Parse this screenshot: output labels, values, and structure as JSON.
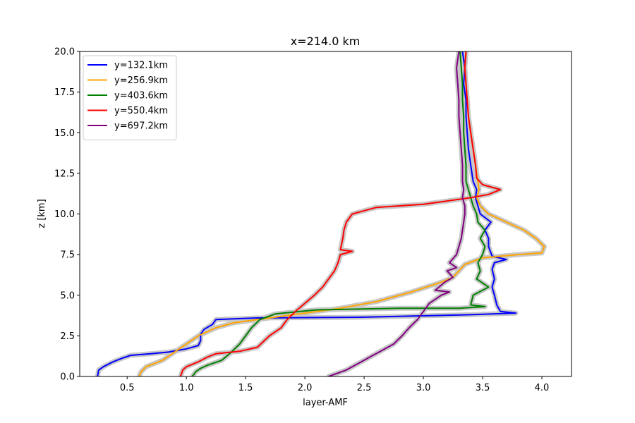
{
  "chart_data": {
    "type": "line",
    "title": "x=214.0 km",
    "xlabel": "layer-AMF",
    "ylabel": "z [km]",
    "xlim": [
      0.1,
      4.25
    ],
    "ylim": [
      0,
      20
    ],
    "xticks": [
      0.5,
      1.0,
      1.5,
      2.0,
      2.5,
      3.0,
      3.5,
      4.0
    ],
    "xtick_labels": [
      "0.5",
      "1.0",
      "1.5",
      "2.0",
      "2.5",
      "3.0",
      "3.5",
      "4.0"
    ],
    "yticks": [
      0,
      2.5,
      5,
      7.5,
      10,
      12.5,
      15,
      17.5,
      20
    ],
    "ytick_labels": [
      "0.0",
      "2.5",
      "5.0",
      "7.5",
      "10.0",
      "12.5",
      "15.0",
      "17.5",
      "20.0"
    ],
    "grid": false,
    "legend_position": "top-left",
    "uncertainty_band_color": "#c8c8c8",
    "series": [
      {
        "name": "y=132.1km",
        "color": "#0000ff",
        "points": [
          [
            0.25,
            0
          ],
          [
            0.26,
            0.4
          ],
          [
            0.3,
            0.6
          ],
          [
            0.38,
            0.9
          ],
          [
            0.45,
            1.1
          ],
          [
            0.53,
            1.3
          ],
          [
            0.7,
            1.4
          ],
          [
            0.85,
            1.5
          ],
          [
            1.0,
            1.7
          ],
          [
            1.1,
            1.9
          ],
          [
            1.12,
            2.2
          ],
          [
            1.12,
            2.6
          ],
          [
            1.15,
            2.9
          ],
          [
            1.22,
            3.2
          ],
          [
            1.25,
            3.5
          ],
          [
            1.6,
            3.6
          ],
          [
            2.5,
            3.65
          ],
          [
            3.4,
            3.8
          ],
          [
            3.78,
            3.9
          ],
          [
            3.65,
            4.0
          ],
          [
            3.62,
            4.4
          ],
          [
            3.6,
            5.0
          ],
          [
            3.58,
            5.5
          ],
          [
            3.6,
            6.0
          ],
          [
            3.58,
            6.6
          ],
          [
            3.6,
            7.0
          ],
          [
            3.7,
            7.2
          ],
          [
            3.58,
            7.4
          ],
          [
            3.55,
            8.0
          ],
          [
            3.55,
            8.5
          ],
          [
            3.52,
            9.0
          ],
          [
            3.57,
            9.5
          ],
          [
            3.48,
            10.0
          ],
          [
            3.46,
            10.5
          ],
          [
            3.44,
            11.0
          ],
          [
            3.45,
            11.5
          ],
          [
            3.42,
            12.0
          ],
          [
            3.4,
            13.0
          ],
          [
            3.38,
            14.0
          ],
          [
            3.37,
            15.0
          ],
          [
            3.36,
            16.0
          ],
          [
            3.36,
            17.0
          ],
          [
            3.34,
            18.0
          ],
          [
            3.35,
            19.0
          ],
          [
            3.33,
            20.0
          ]
        ]
      },
      {
        "name": "y=256.9km",
        "color": "#ffa500",
        "points": [
          [
            0.6,
            0
          ],
          [
            0.62,
            0.3
          ],
          [
            0.66,
            0.6
          ],
          [
            0.8,
            1.0
          ],
          [
            0.9,
            1.5
          ],
          [
            1.0,
            2.0
          ],
          [
            1.1,
            2.5
          ],
          [
            1.25,
            3.0
          ],
          [
            1.4,
            3.3
          ],
          [
            1.7,
            3.6
          ],
          [
            2.0,
            3.9
          ],
          [
            2.3,
            4.2
          ],
          [
            2.6,
            4.6
          ],
          [
            2.9,
            5.2
          ],
          [
            3.15,
            5.8
          ],
          [
            3.25,
            6.1
          ],
          [
            3.3,
            6.5
          ],
          [
            3.35,
            6.9
          ],
          [
            3.5,
            7.3
          ],
          [
            3.8,
            7.5
          ],
          [
            4.0,
            7.6
          ],
          [
            4.02,
            8.0
          ],
          [
            3.95,
            8.5
          ],
          [
            3.85,
            9.0
          ],
          [
            3.7,
            9.5
          ],
          [
            3.55,
            10.0
          ],
          [
            3.48,
            10.5
          ],
          [
            3.45,
            11.0
          ],
          [
            3.47,
            11.5
          ],
          [
            3.46,
            12.0
          ],
          [
            3.44,
            13.0
          ],
          [
            3.42,
            14.0
          ],
          [
            3.4,
            15.0
          ],
          [
            3.38,
            16.0
          ],
          [
            3.37,
            17.0
          ],
          [
            3.36,
            18.0
          ],
          [
            3.35,
            19.0
          ],
          [
            3.36,
            20.0
          ]
        ]
      },
      {
        "name": "y=403.6km",
        "color": "#008000",
        "points": [
          [
            1.05,
            0
          ],
          [
            1.08,
            0.3
          ],
          [
            1.12,
            0.5
          ],
          [
            1.18,
            0.7
          ],
          [
            1.3,
            1.0
          ],
          [
            1.38,
            1.5
          ],
          [
            1.45,
            2.0
          ],
          [
            1.5,
            2.5
          ],
          [
            1.55,
            3.0
          ],
          [
            1.62,
            3.5
          ],
          [
            1.75,
            3.85
          ],
          [
            2.1,
            4.1
          ],
          [
            2.8,
            4.2
          ],
          [
            3.3,
            4.2
          ],
          [
            3.52,
            4.3
          ],
          [
            3.4,
            4.4
          ],
          [
            3.42,
            5.0
          ],
          [
            3.55,
            5.5
          ],
          [
            3.45,
            6.0
          ],
          [
            3.48,
            6.5
          ],
          [
            3.46,
            7.0
          ],
          [
            3.5,
            7.5
          ],
          [
            3.52,
            8.0
          ],
          [
            3.48,
            8.5
          ],
          [
            3.52,
            9.0
          ],
          [
            3.46,
            9.5
          ],
          [
            3.45,
            10.0
          ],
          [
            3.42,
            10.5
          ],
          [
            3.4,
            11.0
          ],
          [
            3.38,
            11.5
          ],
          [
            3.36,
            12.0
          ],
          [
            3.36,
            13.0
          ],
          [
            3.35,
            14.0
          ],
          [
            3.34,
            15.0
          ],
          [
            3.34,
            16.0
          ],
          [
            3.33,
            17.0
          ],
          [
            3.33,
            18.0
          ],
          [
            3.32,
            19.0
          ],
          [
            3.31,
            20.0
          ]
        ]
      },
      {
        "name": "y=550.4km",
        "color": "#ff0000",
        "points": [
          [
            0.95,
            0
          ],
          [
            0.97,
            0.4
          ],
          [
            1.0,
            0.6
          ],
          [
            1.1,
            0.9
          ],
          [
            1.18,
            1.2
          ],
          [
            1.25,
            1.4
          ],
          [
            1.45,
            1.55
          ],
          [
            1.6,
            1.8
          ],
          [
            1.7,
            2.5
          ],
          [
            1.8,
            3.0
          ],
          [
            1.85,
            3.5
          ],
          [
            1.92,
            4.0
          ],
          [
            2.0,
            4.5
          ],
          [
            2.08,
            5.0
          ],
          [
            2.15,
            5.5
          ],
          [
            2.2,
            6.0
          ],
          [
            2.25,
            6.5
          ],
          [
            2.28,
            7.0
          ],
          [
            2.3,
            7.5
          ],
          [
            2.4,
            7.7
          ],
          [
            2.3,
            7.8
          ],
          [
            2.32,
            8.5
          ],
          [
            2.33,
            9.0
          ],
          [
            2.35,
            9.5
          ],
          [
            2.4,
            10.0
          ],
          [
            2.6,
            10.4
          ],
          [
            3.0,
            10.6
          ],
          [
            3.2,
            10.8
          ],
          [
            3.4,
            11.0
          ],
          [
            3.55,
            11.2
          ],
          [
            3.65,
            11.5
          ],
          [
            3.5,
            11.8
          ],
          [
            3.45,
            12.2
          ],
          [
            3.44,
            13.0
          ],
          [
            3.42,
            14.0
          ],
          [
            3.4,
            15.0
          ],
          [
            3.38,
            16.0
          ],
          [
            3.37,
            17.0
          ],
          [
            3.36,
            18.0
          ],
          [
            3.35,
            19.0
          ],
          [
            3.36,
            20.0
          ]
        ]
      },
      {
        "name": "y=697.2km",
        "color": "#800080",
        "points": [
          [
            2.2,
            0
          ],
          [
            2.35,
            0.4
          ],
          [
            2.45,
            0.8
          ],
          [
            2.55,
            1.2
          ],
          [
            2.65,
            1.6
          ],
          [
            2.75,
            2.0
          ],
          [
            2.82,
            2.5
          ],
          [
            2.88,
            3.0
          ],
          [
            2.95,
            3.5
          ],
          [
            3.0,
            4.0
          ],
          [
            3.05,
            4.5
          ],
          [
            3.15,
            5.0
          ],
          [
            3.22,
            5.2
          ],
          [
            3.1,
            5.3
          ],
          [
            3.18,
            5.8
          ],
          [
            3.25,
            6.1
          ],
          [
            3.2,
            6.5
          ],
          [
            3.28,
            6.7
          ],
          [
            3.22,
            7.0
          ],
          [
            3.28,
            7.5
          ],
          [
            3.3,
            8.0
          ],
          [
            3.32,
            8.5
          ],
          [
            3.33,
            9.0
          ],
          [
            3.34,
            9.5
          ],
          [
            3.35,
            10.0
          ],
          [
            3.35,
            10.5
          ],
          [
            3.33,
            11.0
          ],
          [
            3.34,
            11.5
          ],
          [
            3.33,
            12.0
          ],
          [
            3.33,
            13.0
          ],
          [
            3.32,
            14.0
          ],
          [
            3.31,
            15.0
          ],
          [
            3.3,
            16.0
          ],
          [
            3.3,
            17.0
          ],
          [
            3.29,
            18.0
          ],
          [
            3.28,
            19.0
          ],
          [
            3.3,
            20.0
          ]
        ]
      }
    ]
  }
}
